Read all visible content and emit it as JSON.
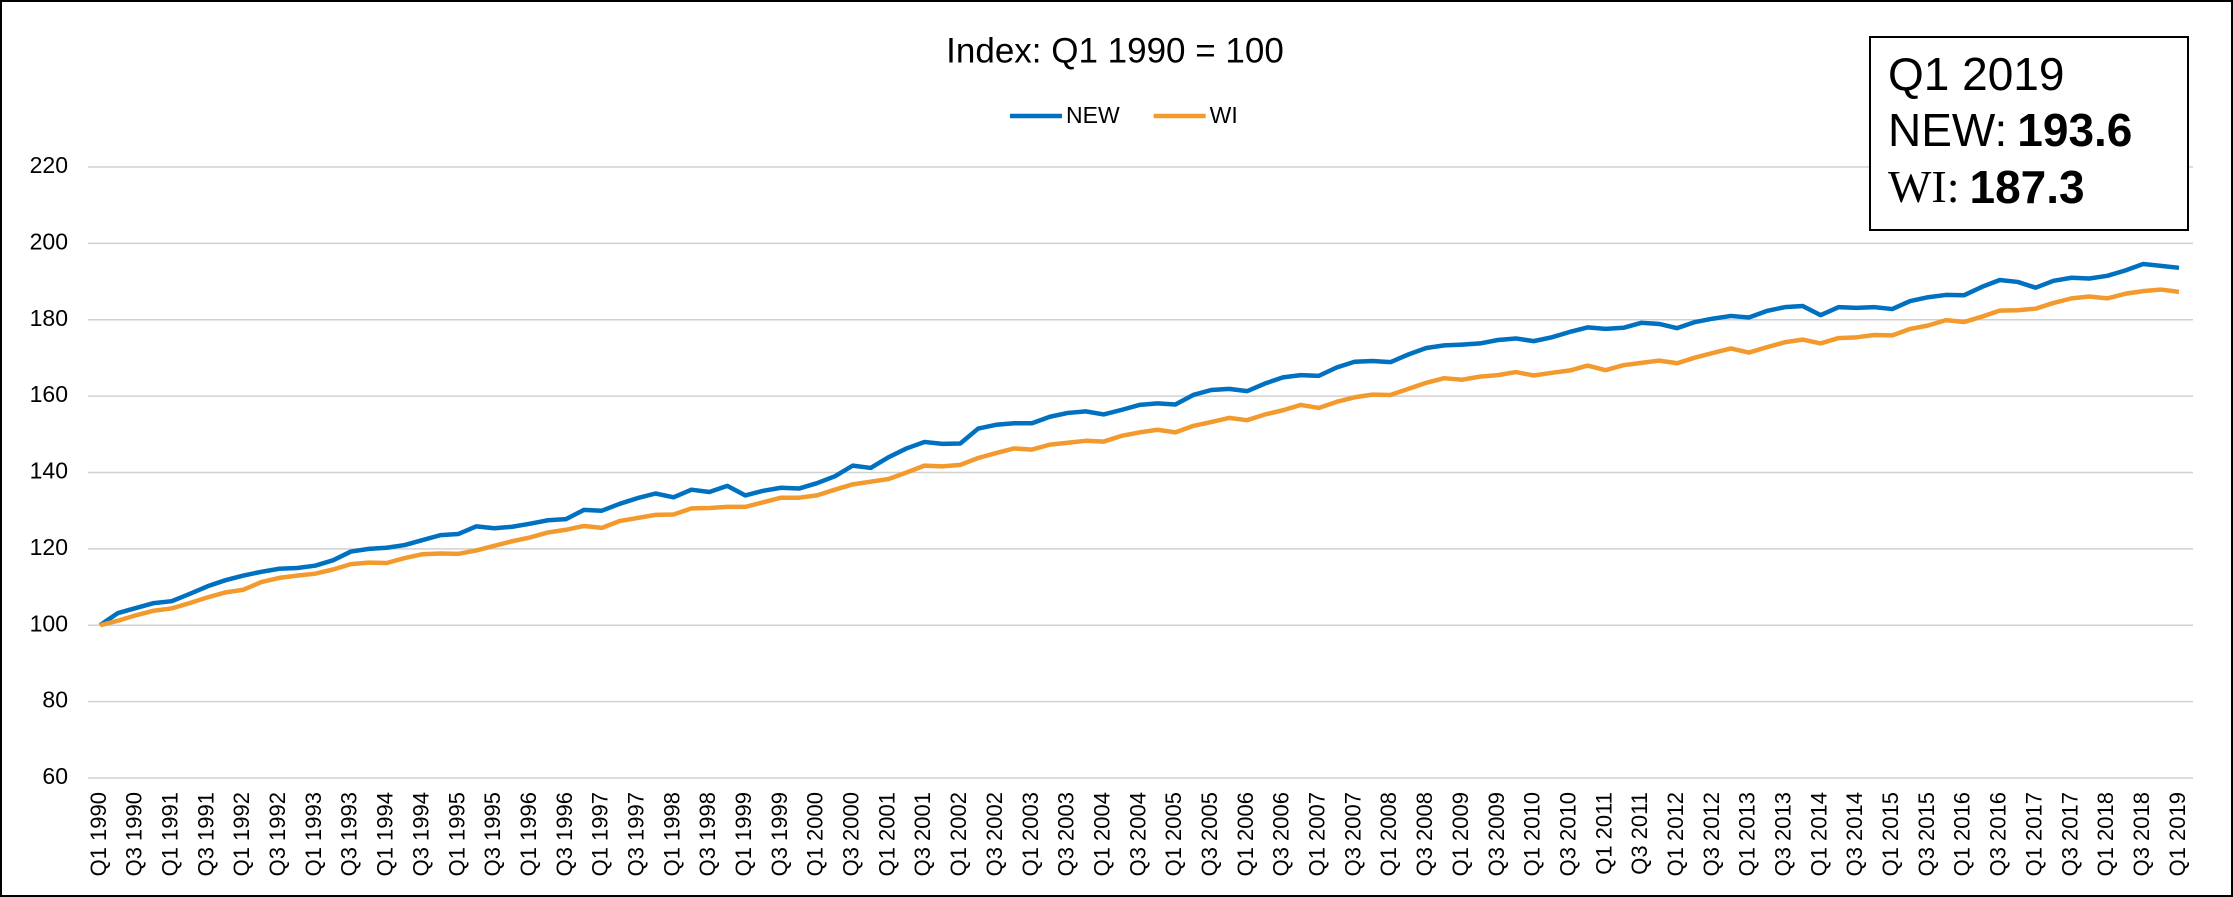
{
  "chart_data": {
    "type": "line",
    "title": "Index: Q1 1990 = 100",
    "categories": [
      "Q1 1990",
      null,
      "Q3 1990",
      null,
      "Q1 1991",
      null,
      "Q3 1991",
      null,
      "Q1 1992",
      null,
      "Q3 1992",
      null,
      "Q1 1993",
      null,
      "Q3 1993",
      null,
      "Q1 1994",
      null,
      "Q3 1994",
      null,
      "Q1 1995",
      null,
      "Q3 1995",
      null,
      "Q1 1996",
      null,
      "Q3 1996",
      null,
      "Q1 1997",
      null,
      "Q3 1997",
      null,
      "Q1 1998",
      null,
      "Q3 1998",
      null,
      "Q1 1999",
      null,
      "Q3 1999",
      null,
      "Q1 2000",
      null,
      "Q3 2000",
      null,
      "Q1 2001",
      null,
      "Q3 2001",
      null,
      "Q1 2002",
      null,
      "Q3 2002",
      null,
      "Q1 2003",
      null,
      "Q3 2003",
      null,
      "Q1 2004",
      null,
      "Q3 2004",
      null,
      "Q1 2005",
      null,
      "Q3 2005",
      null,
      "Q1 2006",
      null,
      "Q3 2006",
      null,
      "Q1 2007",
      null,
      "Q3 2007",
      null,
      "Q1 2008",
      null,
      "Q3 2008",
      null,
      "Q1 2009",
      null,
      "Q3 2009",
      null,
      "Q1 2010",
      null,
      "Q3 2010",
      null,
      "Q1 2011",
      null,
      "Q3 2011",
      null,
      "Q1 2012",
      null,
      "Q3 2012",
      null,
      "Q1 2013",
      null,
      "Q3 2013",
      null,
      "Q1 2014",
      null,
      "Q3 2014",
      null,
      "Q1 2015",
      null,
      "Q3 2015",
      null,
      "Q1 2016",
      null,
      "Q3 2016",
      null,
      "Q1 2017",
      null,
      "Q3 2017",
      null,
      "Q1 2018",
      null,
      "Q3 2018",
      null,
      "Q1 2019"
    ],
    "series": [
      {
        "name": "NEW",
        "color": "#0070c0",
        "values": [
          100,
          103.2,
          104.5,
          105.8,
          106.3,
          108.2,
          110.2,
          111.8,
          113.0,
          114.0,
          114.8,
          115.0,
          115.6,
          117.0,
          119.3,
          120.0,
          120.3,
          121.0,
          122.3,
          123.6,
          123.9,
          125.9,
          125.4,
          125.8,
          126.6,
          127.5,
          127.8,
          130.2,
          130.0,
          131.8,
          133.3,
          134.5,
          133.5,
          135.5,
          134.9,
          136.5,
          134.0,
          135.2,
          136.0,
          135.8,
          137.2,
          139.0,
          141.8,
          141.2,
          144.0,
          146.3,
          148.0,
          147.5,
          147.6,
          151.5,
          152.5,
          152.9,
          152.9,
          154.6,
          155.6,
          156.0,
          155.2,
          156.4,
          157.7,
          158.1,
          157.8,
          160.3,
          161.6,
          161.9,
          161.3,
          163.3,
          164.9,
          165.5,
          165.3,
          167.5,
          169.0,
          169.2,
          168.9,
          170.9,
          172.6,
          173.3,
          173.5,
          173.8,
          174.7,
          175.1,
          174.4,
          175.4,
          176.8,
          178.0,
          177.6,
          177.9,
          179.2,
          178.9,
          177.8,
          179.4,
          180.3,
          181.0,
          180.6,
          182.3,
          183.3,
          183.6,
          181.2,
          183.3,
          183.1,
          183.3,
          182.8,
          184.9,
          185.9,
          186.5,
          186.4,
          188.6,
          190.4,
          189.9,
          188.4,
          190.2,
          191.0,
          190.8,
          191.5,
          192.9,
          194.6,
          194.1,
          193.6
        ]
      },
      {
        "name": "WI",
        "color": "#f39a2e",
        "values": [
          100,
          101.2,
          102.6,
          103.8,
          104.4,
          105.8,
          107.3,
          108.6,
          109.3,
          111.3,
          112.4,
          113.0,
          113.5,
          114.6,
          116.0,
          116.4,
          116.3,
          117.6,
          118.6,
          118.8,
          118.7,
          119.6,
          120.8,
          122.0,
          123.0,
          124.3,
          125.0,
          126.0,
          125.5,
          127.3,
          128.1,
          128.9,
          129.0,
          130.6,
          130.7,
          131.0,
          131.0,
          132.2,
          133.4,
          133.4,
          134.0,
          135.5,
          136.9,
          137.6,
          138.3,
          140.0,
          141.8,
          141.6,
          142.0,
          143.8,
          145.1,
          146.3,
          146.0,
          147.3,
          147.8,
          148.3,
          148.1,
          149.6,
          150.5,
          151.2,
          150.5,
          152.2,
          153.2,
          154.3,
          153.7,
          155.2,
          156.3,
          157.7,
          156.9,
          158.5,
          159.7,
          160.4,
          160.3,
          161.9,
          163.5,
          164.7,
          164.3,
          165.1,
          165.5,
          166.3,
          165.4,
          166.1,
          166.7,
          168.0,
          166.8,
          168.1,
          168.7,
          169.3,
          168.6,
          170.1,
          171.3,
          172.5,
          171.4,
          172.8,
          174.1,
          174.8,
          173.8,
          175.2,
          175.4,
          176.0,
          175.9,
          177.6,
          178.5,
          179.9,
          179.4,
          180.8,
          182.4,
          182.5,
          182.9,
          184.4,
          185.6,
          186.1,
          185.6,
          186.8,
          187.5,
          187.9,
          187.3
        ]
      }
    ],
    "ylim": [
      60,
      220
    ],
    "yticks": [
      60,
      80,
      100,
      120,
      140,
      160,
      180,
      200,
      220
    ],
    "grid": true,
    "legend": "top",
    "annotation": {
      "heading": "Q1 2019",
      "items": [
        {
          "label": "NEW:",
          "value": 193.6
        },
        {
          "label": "WI:",
          "value": 187.3
        }
      ]
    }
  }
}
